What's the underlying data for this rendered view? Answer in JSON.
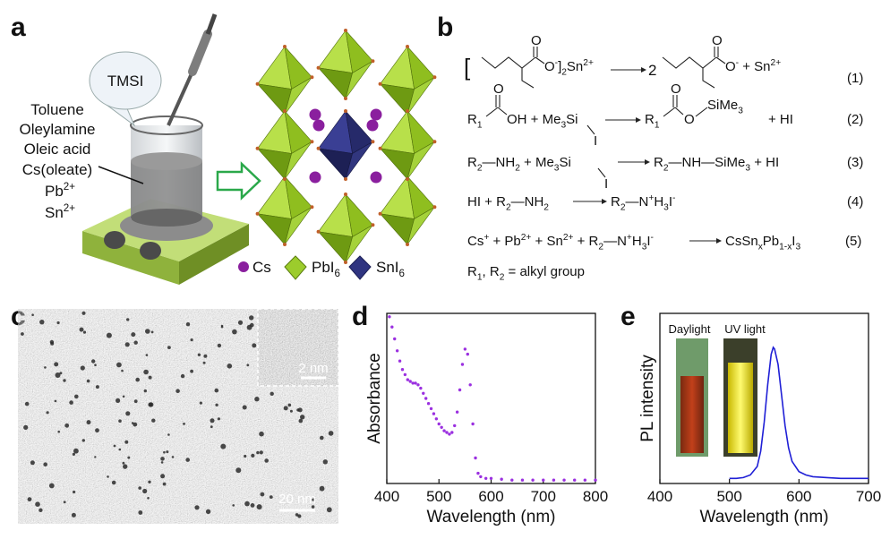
{
  "panel_a": {
    "label": "a",
    "bubble": "TMSI",
    "reagents": [
      "Toluene",
      "Oleylamine",
      "Oleic acid",
      "Cs(oleate)"
    ],
    "ions": [
      [
        "Pb",
        {
          "sup": "2+"
        }
      ],
      [
        "Sn",
        {
          "sup": "2+"
        }
      ]
    ],
    "legend": [
      [
        "Cs"
      ],
      [
        "PbI",
        {
          "sub": "6"
        }
      ],
      [
        "SnI",
        {
          "sub": "6"
        }
      ]
    ]
  },
  "panel_b": {
    "label": "b",
    "eq1": {
      "bracket": "[",
      "above_left": "O",
      "left": [
        "O",
        {
          "sup": "-"
        },
        "]",
        {
          "sub": "2"
        },
        "Sn",
        {
          "sup": "2+"
        }
      ],
      "coef": "2",
      "above_right": "O",
      "right": [
        "O",
        {
          "sup": "-"
        },
        " + Sn",
        {
          "sup": "2+"
        }
      ],
      "number": "(1)"
    },
    "eq2": {
      "left": [
        "R",
        {
          "sub": "1"
        }
      ],
      "above_left": "O",
      "mid": [
        "OH + Me",
        {
          "sub": "3"
        },
        "Si"
      ],
      "below": "I",
      "right": [
        "R",
        {
          "sub": "1"
        }
      ],
      "above_right": "O",
      "right_o": "O",
      "right_si": [
        "SiMe",
        {
          "sub": "3"
        }
      ],
      "right_end": "+ HI",
      "number": "(2)"
    },
    "eq3": {
      "left": [
        "R",
        {
          "sub": "2"
        },
        "—NH",
        {
          "sub": "2"
        },
        " + Me",
        {
          "sub": "3"
        },
        "Si"
      ],
      "below": "I",
      "right": [
        "R",
        {
          "sub": "2"
        },
        "—NH—SiMe",
        {
          "sub": "3"
        },
        " + HI"
      ],
      "number": "(3)"
    },
    "eq4": {
      "left": [
        "HI + R",
        {
          "sub": "2"
        },
        "—NH",
        {
          "sub": "2"
        }
      ],
      "right": [
        "R",
        {
          "sub": "2"
        },
        "—N",
        {
          "sup": "+"
        },
        "H",
        {
          "sub": "3"
        },
        "I",
        {
          "sup": "-"
        }
      ],
      "number": "(4)"
    },
    "eq5": {
      "left": [
        "Cs",
        {
          "sup": "+"
        },
        " + Pb",
        {
          "sup": "2+"
        },
        " + Sn",
        {
          "sup": "2+"
        },
        " + R",
        {
          "sub": "2"
        },
        "—N",
        {
          "sup": "+"
        },
        "H",
        {
          "sub": "3"
        },
        "I",
        {
          "sup": "-"
        }
      ],
      "right": [
        "CsSn",
        {
          "sub": "x"
        },
        "Pb",
        {
          "sub": "1-x"
        },
        "I",
        {
          "sub": "3"
        }
      ],
      "number": "(5)"
    },
    "note": [
      "R",
      {
        "sub": "1"
      },
      ", R",
      {
        "sub": "2"
      },
      " = alkyl group"
    ]
  },
  "panel_c": {
    "label": "c",
    "inset_scale": "2 nm",
    "scale": "20 nm"
  },
  "chart_data": [
    {
      "type": "scatter",
      "panel_label": "d",
      "xlabel": "Wavelength (nm)",
      "ylabel": "Absorbance",
      "color": "#9b30e0",
      "x": [
        405,
        410,
        415,
        420,
        425,
        430,
        435,
        440,
        445,
        450,
        455,
        460,
        465,
        470,
        475,
        480,
        485,
        490,
        495,
        500,
        505,
        510,
        515,
        520,
        525,
        530,
        535,
        540,
        545,
        550,
        555,
        560,
        565,
        570,
        575,
        580,
        590,
        600,
        620,
        640,
        660,
        680,
        700,
        720,
        740,
        760,
        780,
        800
      ],
      "values": [
        0.98,
        0.92,
        0.85,
        0.78,
        0.72,
        0.67,
        0.64,
        0.61,
        0.6,
        0.59,
        0.59,
        0.58,
        0.56,
        0.53,
        0.5,
        0.47,
        0.44,
        0.41,
        0.38,
        0.35,
        0.33,
        0.31,
        0.3,
        0.29,
        0.3,
        0.34,
        0.42,
        0.55,
        0.7,
        0.79,
        0.76,
        0.58,
        0.35,
        0.15,
        0.06,
        0.04,
        0.03,
        0.03,
        0.025,
        0.02,
        0.02,
        0.02,
        0.02,
        0.02,
        0.02,
        0.02,
        0.02,
        0.02
      ],
      "xlim": [
        400,
        800
      ],
      "xticks": [
        400,
        500,
        600,
        700,
        800
      ],
      "ylim": [
        0,
        1
      ]
    },
    {
      "type": "line",
      "panel_label": "e",
      "xlabel": "Wavelength (nm)",
      "ylabel": "PL intensity",
      "color": "#1f1fd6",
      "insets": [
        "Daylight",
        "UV light"
      ],
      "x": [
        500,
        510,
        520,
        530,
        540,
        545,
        550,
        555,
        560,
        563,
        565,
        570,
        575,
        580,
        585,
        590,
        600,
        610,
        620,
        640,
        660,
        680,
        700
      ],
      "values": [
        0.03,
        0.03,
        0.035,
        0.05,
        0.1,
        0.19,
        0.36,
        0.58,
        0.76,
        0.8,
        0.79,
        0.7,
        0.52,
        0.34,
        0.21,
        0.13,
        0.07,
        0.05,
        0.04,
        0.035,
        0.03,
        0.03,
        0.03
      ],
      "xlim": [
        400,
        700
      ],
      "xticks": [
        400,
        500,
        600,
        700
      ],
      "ylim": [
        0,
        1
      ]
    }
  ]
}
